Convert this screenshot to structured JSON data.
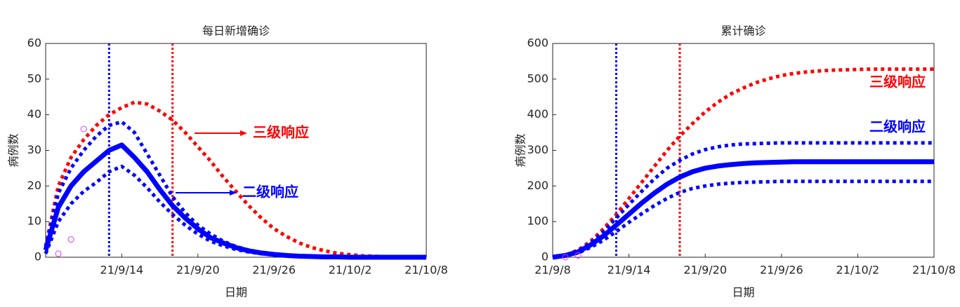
{
  "chart_data": [
    {
      "type": "line",
      "title": "每日新增确诊",
      "xlabel": "日期",
      "ylabel": "病例数",
      "xlim": [
        0,
        30
      ],
      "xticks": [
        {
          "value": 6,
          "label": "21/9/14"
        },
        {
          "value": 12,
          "label": "21/9/20"
        },
        {
          "value": 18,
          "label": "21/9/26"
        },
        {
          "value": 24,
          "label": "21/10/2"
        },
        {
          "value": 30,
          "label": "21/10/8"
        }
      ],
      "ylim": [
        0,
        60
      ],
      "yticks": [
        0,
        10,
        20,
        30,
        40,
        50,
        60
      ],
      "x": [
        0,
        1,
        2,
        3,
        4,
        5,
        6,
        7,
        8,
        9,
        10,
        11,
        12,
        13,
        14,
        15,
        16,
        17,
        18,
        19,
        20,
        21,
        22,
        23,
        24,
        25,
        26,
        27,
        28,
        29,
        30
      ],
      "series": [
        {
          "color": "#ff0000",
          "style": "dotted",
          "values": [
            3,
            20,
            28,
            33,
            37,
            40,
            42,
            43.5,
            43,
            41,
            38.5,
            35,
            31,
            27,
            22.5,
            18.5,
            14.5,
            11,
            8,
            5.8,
            4,
            2.7,
            1.8,
            1.1,
            0.7,
            0.4,
            0.25,
            0.15,
            0.1,
            0.05,
            0
          ]
        },
        {
          "color": "#0000ff",
          "style": "dotted",
          "values": [
            3,
            18,
            25,
            30,
            34,
            37,
            38,
            35,
            29,
            23,
            17,
            12.5,
            9,
            6.5,
            4.5,
            3,
            2,
            1.3,
            0.9,
            0.6,
            0.4,
            0.25,
            0.15,
            0.1,
            0,
            0,
            0,
            0,
            0,
            0,
            0
          ]
        },
        {
          "color": "#0000ff",
          "style": "dotted",
          "values": [
            1,
            10,
            15,
            18.5,
            21,
            24,
            25.5,
            23,
            19.5,
            15.5,
            12,
            9,
            6.5,
            4.5,
            3.2,
            2.2,
            1.5,
            1,
            0.6,
            0.4,
            0.25,
            0.15,
            0.1,
            0,
            0,
            0,
            0,
            0,
            0,
            0,
            0
          ]
        },
        {
          "color": "#0000ff",
          "style": "solid",
          "values": [
            2,
            14,
            20,
            24,
            27,
            30,
            31.5,
            28,
            24,
            19,
            14.5,
            11,
            8,
            5.5,
            4,
            2.7,
            1.8,
            1.2,
            0.8,
            0.5,
            0.3,
            0.2,
            0.1,
            0.1,
            0,
            0,
            0,
            0,
            0,
            0,
            0
          ]
        }
      ],
      "points": {
        "color": "#e040e0",
        "x": [
          1,
          2,
          3
        ],
        "values": [
          1,
          5,
          36
        ]
      },
      "vlines": [
        {
          "x": 5,
          "color": "#0000ff"
        },
        {
          "x": 10,
          "color": "#ff0000"
        }
      ],
      "annotations": [
        {
          "text": "三级响应",
          "color": "#ff0000"
        },
        {
          "text": "二级响应",
          "color": "#0000ff"
        }
      ]
    },
    {
      "type": "line",
      "title": "累计确诊",
      "xlabel": "日期",
      "ylabel": "病例数",
      "xlim": [
        0,
        30
      ],
      "xticks": [
        {
          "value": 0,
          "label": "21/9/8"
        },
        {
          "value": 6,
          "label": "21/9/14"
        },
        {
          "value": 12,
          "label": "21/9/20"
        },
        {
          "value": 18,
          "label": "21/9/26"
        },
        {
          "value": 24,
          "label": "21/10/2"
        },
        {
          "value": 30,
          "label": "21/10/8"
        }
      ],
      "ylim": [
        0,
        600
      ],
      "yticks": [
        0,
        100,
        200,
        300,
        400,
        500,
        600
      ],
      "x": [
        0,
        1,
        2,
        3,
        4,
        5,
        6,
        7,
        8,
        9,
        10,
        11,
        12,
        13,
        14,
        15,
        16,
        17,
        18,
        19,
        20,
        21,
        22,
        23,
        24,
        25,
        26,
        27,
        28,
        29,
        30
      ],
      "series": [
        {
          "color": "#ff0000",
          "style": "dotted",
          "values": [
            0,
            6,
            20,
            45,
            80,
            120,
            165,
            210,
            255,
            300,
            340,
            375,
            408,
            435,
            458,
            475,
            490,
            501,
            510,
            516,
            520,
            523,
            525,
            526,
            527,
            528,
            528,
            528,
            528,
            528,
            528
          ]
        },
        {
          "color": "#0000ff",
          "style": "dotted",
          "values": [
            0,
            6,
            18,
            40,
            72,
            110,
            148,
            185,
            220,
            250,
            272,
            290,
            302,
            310,
            315,
            318,
            319,
            320,
            321,
            321,
            321,
            321,
            321,
            321,
            321,
            321,
            321,
            321,
            321,
            321,
            321
          ]
        },
        {
          "color": "#0000ff",
          "style": "dotted",
          "values": [
            0,
            4,
            12,
            28,
            48,
            72,
            98,
            122,
            145,
            165,
            182,
            193,
            200,
            205,
            208,
            210,
            211,
            212,
            213,
            213,
            213,
            213,
            213,
            213,
            213,
            213,
            213,
            213,
            213,
            213,
            213
          ]
        },
        {
          "color": "#0000ff",
          "style": "solid",
          "values": [
            0,
            5,
            15,
            35,
            60,
            90,
            121,
            152,
            180,
            205,
            225,
            240,
            250,
            256,
            260,
            263,
            265,
            266,
            267,
            268,
            268,
            268,
            268,
            268,
            268,
            268,
            268,
            268,
            268,
            268,
            268
          ]
        }
      ],
      "points": {
        "color": "#e040e0",
        "x": [
          1,
          2
        ],
        "values": [
          0,
          5
        ]
      },
      "vlines": [
        {
          "x": 5,
          "color": "#0000ff"
        },
        {
          "x": 10,
          "color": "#ff0000"
        }
      ],
      "annotations": [
        {
          "text": "三级响应",
          "color": "#ff0000"
        },
        {
          "text": "二级响应",
          "color": "#0000ff"
        }
      ]
    }
  ]
}
